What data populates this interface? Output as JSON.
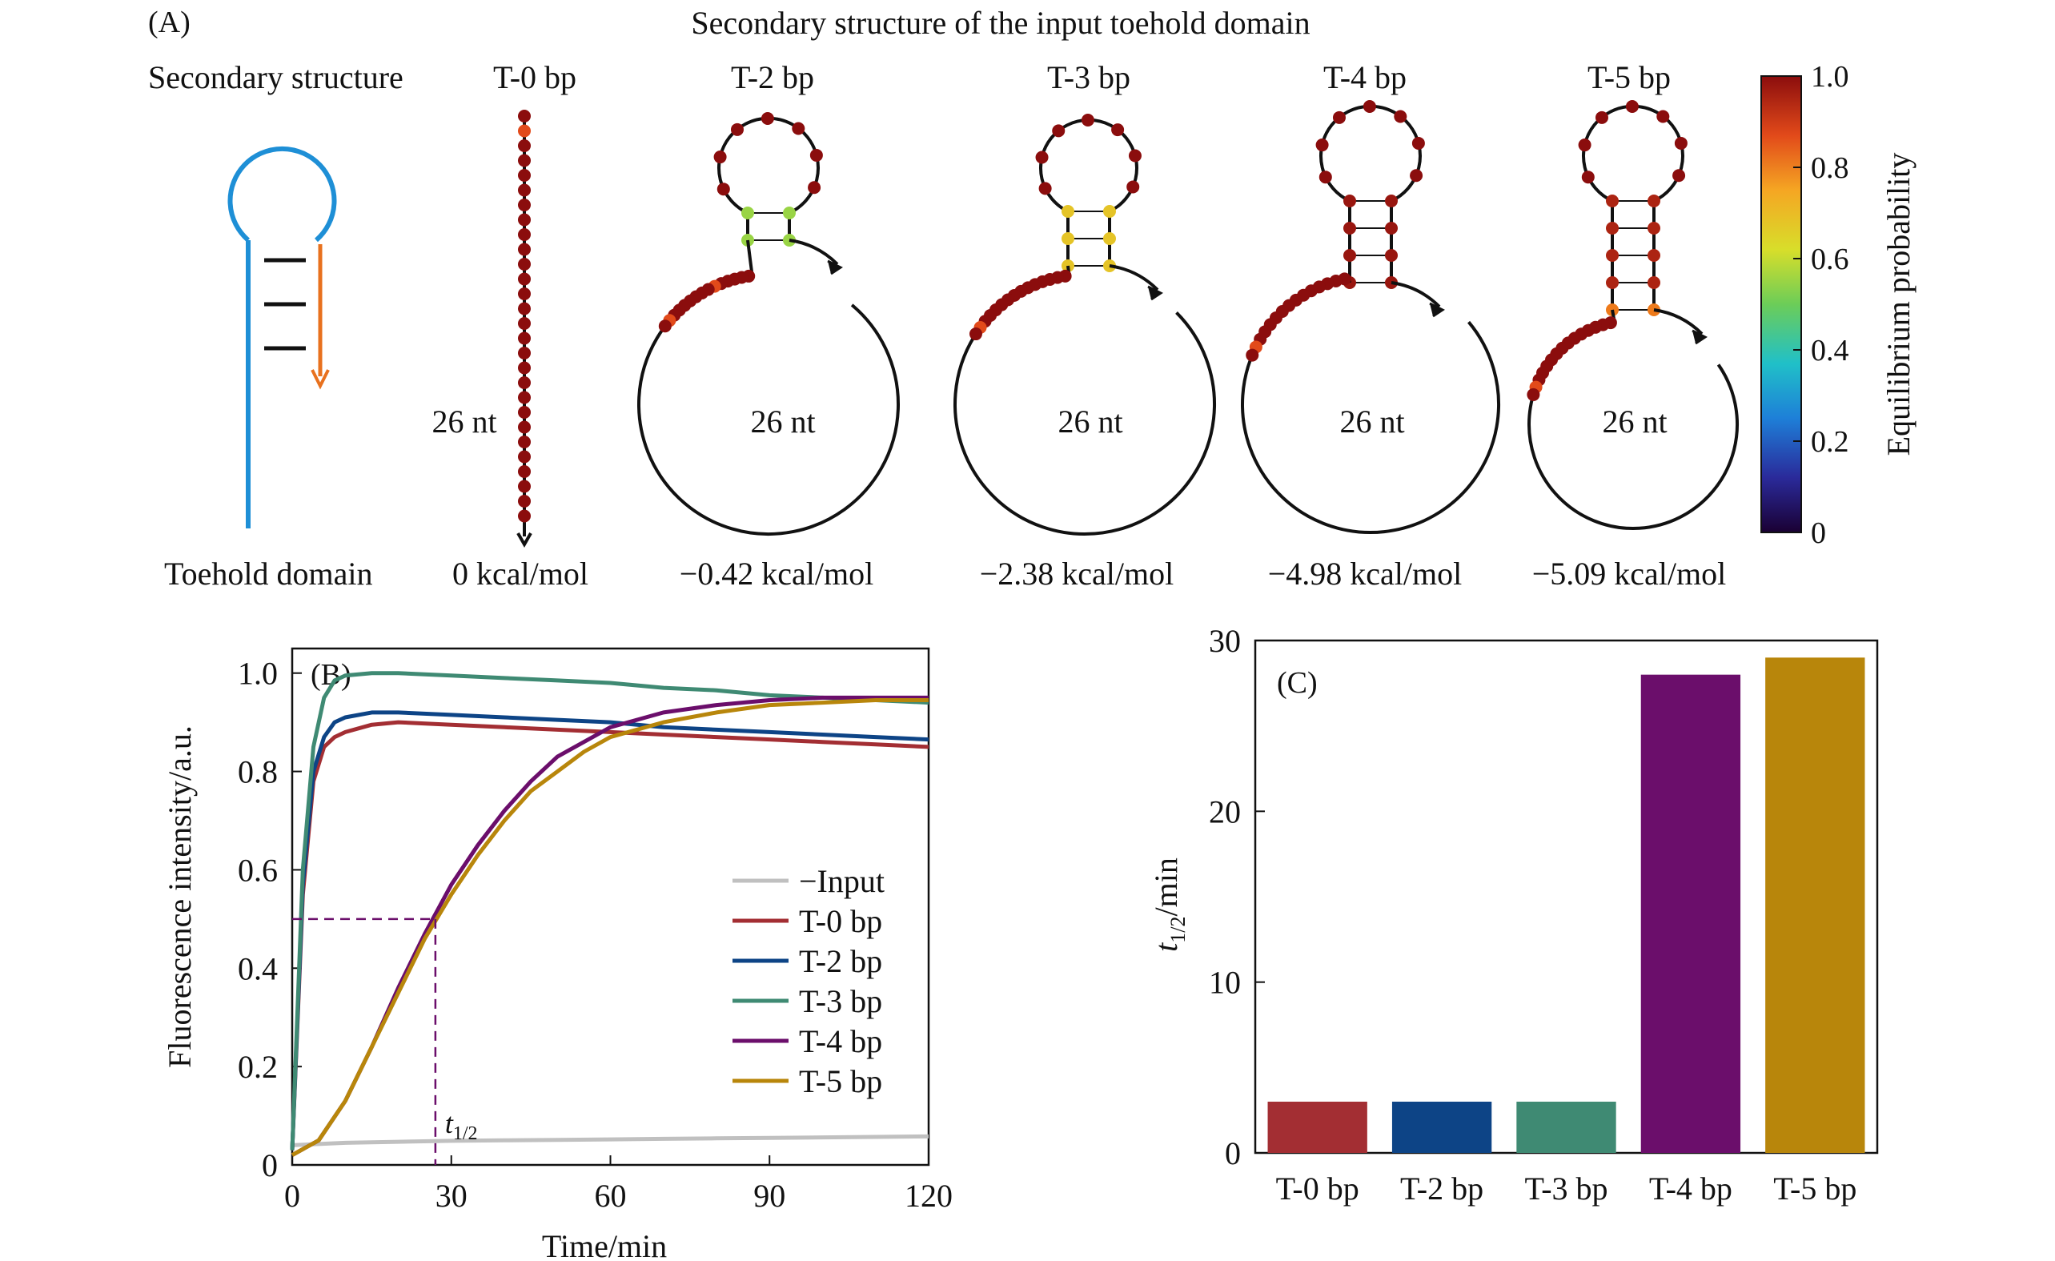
{
  "panel_a": {
    "label": "(A)",
    "title": "Secondary structure of the input toehold domain",
    "row_label_top": "Secondary structure",
    "row_label_bottom": "Toehold domain",
    "nt_label": "26 nt",
    "structures": [
      {
        "name": "T-0 bp",
        "energy": "0 kcal/mol",
        "stem_bp": 0,
        "stem_probability": null
      },
      {
        "name": "T-2 bp",
        "energy": "−0.42 kcal/mol",
        "stem_bp": 2,
        "stem_probability": 0.55
      },
      {
        "name": "T-3 bp",
        "energy": "−2.38 kcal/mol",
        "stem_bp": 3,
        "stem_probability": 0.68
      },
      {
        "name": "T-4 bp",
        "energy": "−4.98 kcal/mol",
        "stem_bp": 4,
        "stem_probability": 0.98
      },
      {
        "name": "T-5 bp",
        "energy": "−5.09 kcal/mol",
        "stem_bp": 5,
        "stem_probability": 0.95
      }
    ],
    "colorbar": {
      "label": "Equilibrium probability",
      "ticks": [
        "1.0",
        "0.8",
        "0.6",
        "0.4",
        "0.2",
        "0"
      ],
      "range": [
        0,
        1
      ]
    },
    "colors": {
      "hairpin_loop": "#1e8fd6",
      "toehold_arrow": "#e8711e",
      "nucleotide_high": "#8b0d0d"
    }
  },
  "chart_data": [
    {
      "type": "line",
      "panel_label": "(B)",
      "xlabel": "Time/min",
      "ylabel": "Fluorescence intensity/a.u.",
      "xlim": [
        0,
        120
      ],
      "ylim": [
        0,
        1.05
      ],
      "xticks": [
        "0",
        "30",
        "60",
        "90",
        "120"
      ],
      "yticks": [
        "0",
        "0.2",
        "0.4",
        "0.6",
        "0.8",
        "1.0"
      ],
      "legend_position": "right",
      "annotation": {
        "text": "t",
        "subscript": "1/2",
        "x": 27,
        "y": 0.5
      },
      "series": [
        {
          "name": "−Input",
          "color": "#c0c0c0",
          "x": [
            0,
            10,
            20,
            30,
            40,
            50,
            60,
            70,
            80,
            90,
            100,
            110,
            120
          ],
          "y": [
            0.04,
            0.045,
            0.047,
            0.049,
            0.05,
            0.051,
            0.052,
            0.053,
            0.054,
            0.055,
            0.056,
            0.057,
            0.058
          ]
        },
        {
          "name": "T-0 bp",
          "color": "#a32e33",
          "x": [
            0,
            2,
            4,
            6,
            8,
            10,
            15,
            20,
            30,
            40,
            50,
            60,
            70,
            80,
            90,
            100,
            110,
            120
          ],
          "y": [
            0.03,
            0.55,
            0.78,
            0.85,
            0.87,
            0.88,
            0.895,
            0.9,
            0.895,
            0.89,
            0.885,
            0.88,
            0.875,
            0.87,
            0.865,
            0.86,
            0.855,
            0.85
          ]
        },
        {
          "name": "T-2 bp",
          "color": "#0d4486",
          "x": [
            0,
            2,
            4,
            6,
            8,
            10,
            15,
            20,
            30,
            40,
            50,
            60,
            70,
            80,
            90,
            100,
            110,
            120
          ],
          "y": [
            0.03,
            0.57,
            0.8,
            0.87,
            0.9,
            0.91,
            0.92,
            0.92,
            0.915,
            0.91,
            0.905,
            0.9,
            0.89,
            0.885,
            0.88,
            0.875,
            0.87,
            0.865
          ]
        },
        {
          "name": "T-3 bp",
          "color": "#3f8a73",
          "x": [
            0,
            2,
            4,
            6,
            8,
            10,
            15,
            20,
            30,
            40,
            50,
            60,
            70,
            80,
            90,
            100,
            110,
            120
          ],
          "y": [
            0.03,
            0.6,
            0.85,
            0.95,
            0.985,
            0.995,
            1.0,
            1.0,
            0.995,
            0.99,
            0.985,
            0.98,
            0.97,
            0.965,
            0.955,
            0.95,
            0.945,
            0.94
          ]
        },
        {
          "name": "T-4 bp",
          "color": "#6b0e6b",
          "x": [
            0,
            5,
            10,
            15,
            20,
            25,
            30,
            35,
            40,
            45,
            50,
            55,
            60,
            70,
            80,
            90,
            100,
            110,
            120
          ],
          "y": [
            0.02,
            0.05,
            0.13,
            0.24,
            0.36,
            0.47,
            0.57,
            0.65,
            0.72,
            0.78,
            0.83,
            0.86,
            0.89,
            0.92,
            0.935,
            0.945,
            0.95,
            0.95,
            0.95
          ]
        },
        {
          "name": "T-5 bp",
          "color": "#b8860b",
          "x": [
            0,
            5,
            10,
            15,
            20,
            25,
            30,
            35,
            40,
            45,
            50,
            55,
            60,
            70,
            80,
            90,
            100,
            110,
            120
          ],
          "y": [
            0.02,
            0.05,
            0.13,
            0.24,
            0.35,
            0.46,
            0.55,
            0.63,
            0.7,
            0.76,
            0.8,
            0.84,
            0.87,
            0.9,
            0.92,
            0.935,
            0.94,
            0.945,
            0.945
          ]
        }
      ]
    },
    {
      "type": "bar",
      "panel_label": "(C)",
      "xlabel": "",
      "ylabel": "t",
      "ylabel_subscript": "1/2",
      "ylabel_suffix": "/min",
      "ylim": [
        0,
        30
      ],
      "yticks": [
        "0",
        "10",
        "20",
        "30"
      ],
      "categories": [
        "T-0 bp",
        "T-2 bp",
        "T-3 bp",
        "T-4 bp",
        "T-5 bp"
      ],
      "values": [
        3,
        3,
        3,
        28,
        29
      ],
      "colors": [
        "#a32e33",
        "#0d4486",
        "#3f8a73",
        "#6b0e6b",
        "#b8860b"
      ]
    }
  ]
}
